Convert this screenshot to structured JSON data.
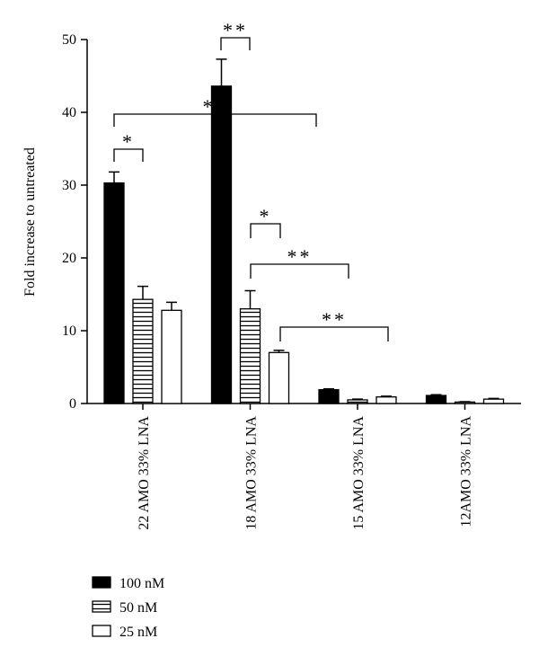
{
  "chart_data": {
    "type": "bar",
    "ylabel": "Fold increase to untreated",
    "categories": [
      "22 AMO 33% LNA",
      "18 AMO 33% LNA",
      "15 AMO 33% LNA",
      "12AMO 33% LNA"
    ],
    "series": [
      {
        "name": "100 nM",
        "color": "#000000",
        "pattern": "solid",
        "values": [
          30.3,
          43.6,
          1.9,
          1.1
        ],
        "errors": [
          1.5,
          3.7,
          0.1,
          0.1
        ]
      },
      {
        "name": "50 nM",
        "color": "#ffffff",
        "pattern": "horizontal-lines",
        "values": [
          14.3,
          13.0,
          0.5,
          0.2
        ],
        "errors": [
          1.8,
          2.5,
          0.1,
          0.05
        ]
      },
      {
        "name": "25 nM",
        "color": "#ffffff",
        "pattern": "solid",
        "values": [
          12.8,
          7.0,
          0.9,
          0.6
        ],
        "errors": [
          1.1,
          0.3,
          0.1,
          0.1
        ]
      }
    ],
    "ylim": [
      0,
      50
    ],
    "yticks": [
      0,
      10,
      20,
      30,
      40,
      50
    ],
    "grid": false,
    "legend": "bottom-left",
    "annotations": [
      {
        "label": "*"
      },
      {
        "label": "**"
      },
      {
        "label": "**"
      },
      {
        "label": "*"
      },
      {
        "label": "**"
      },
      {
        "label": "**"
      }
    ]
  }
}
